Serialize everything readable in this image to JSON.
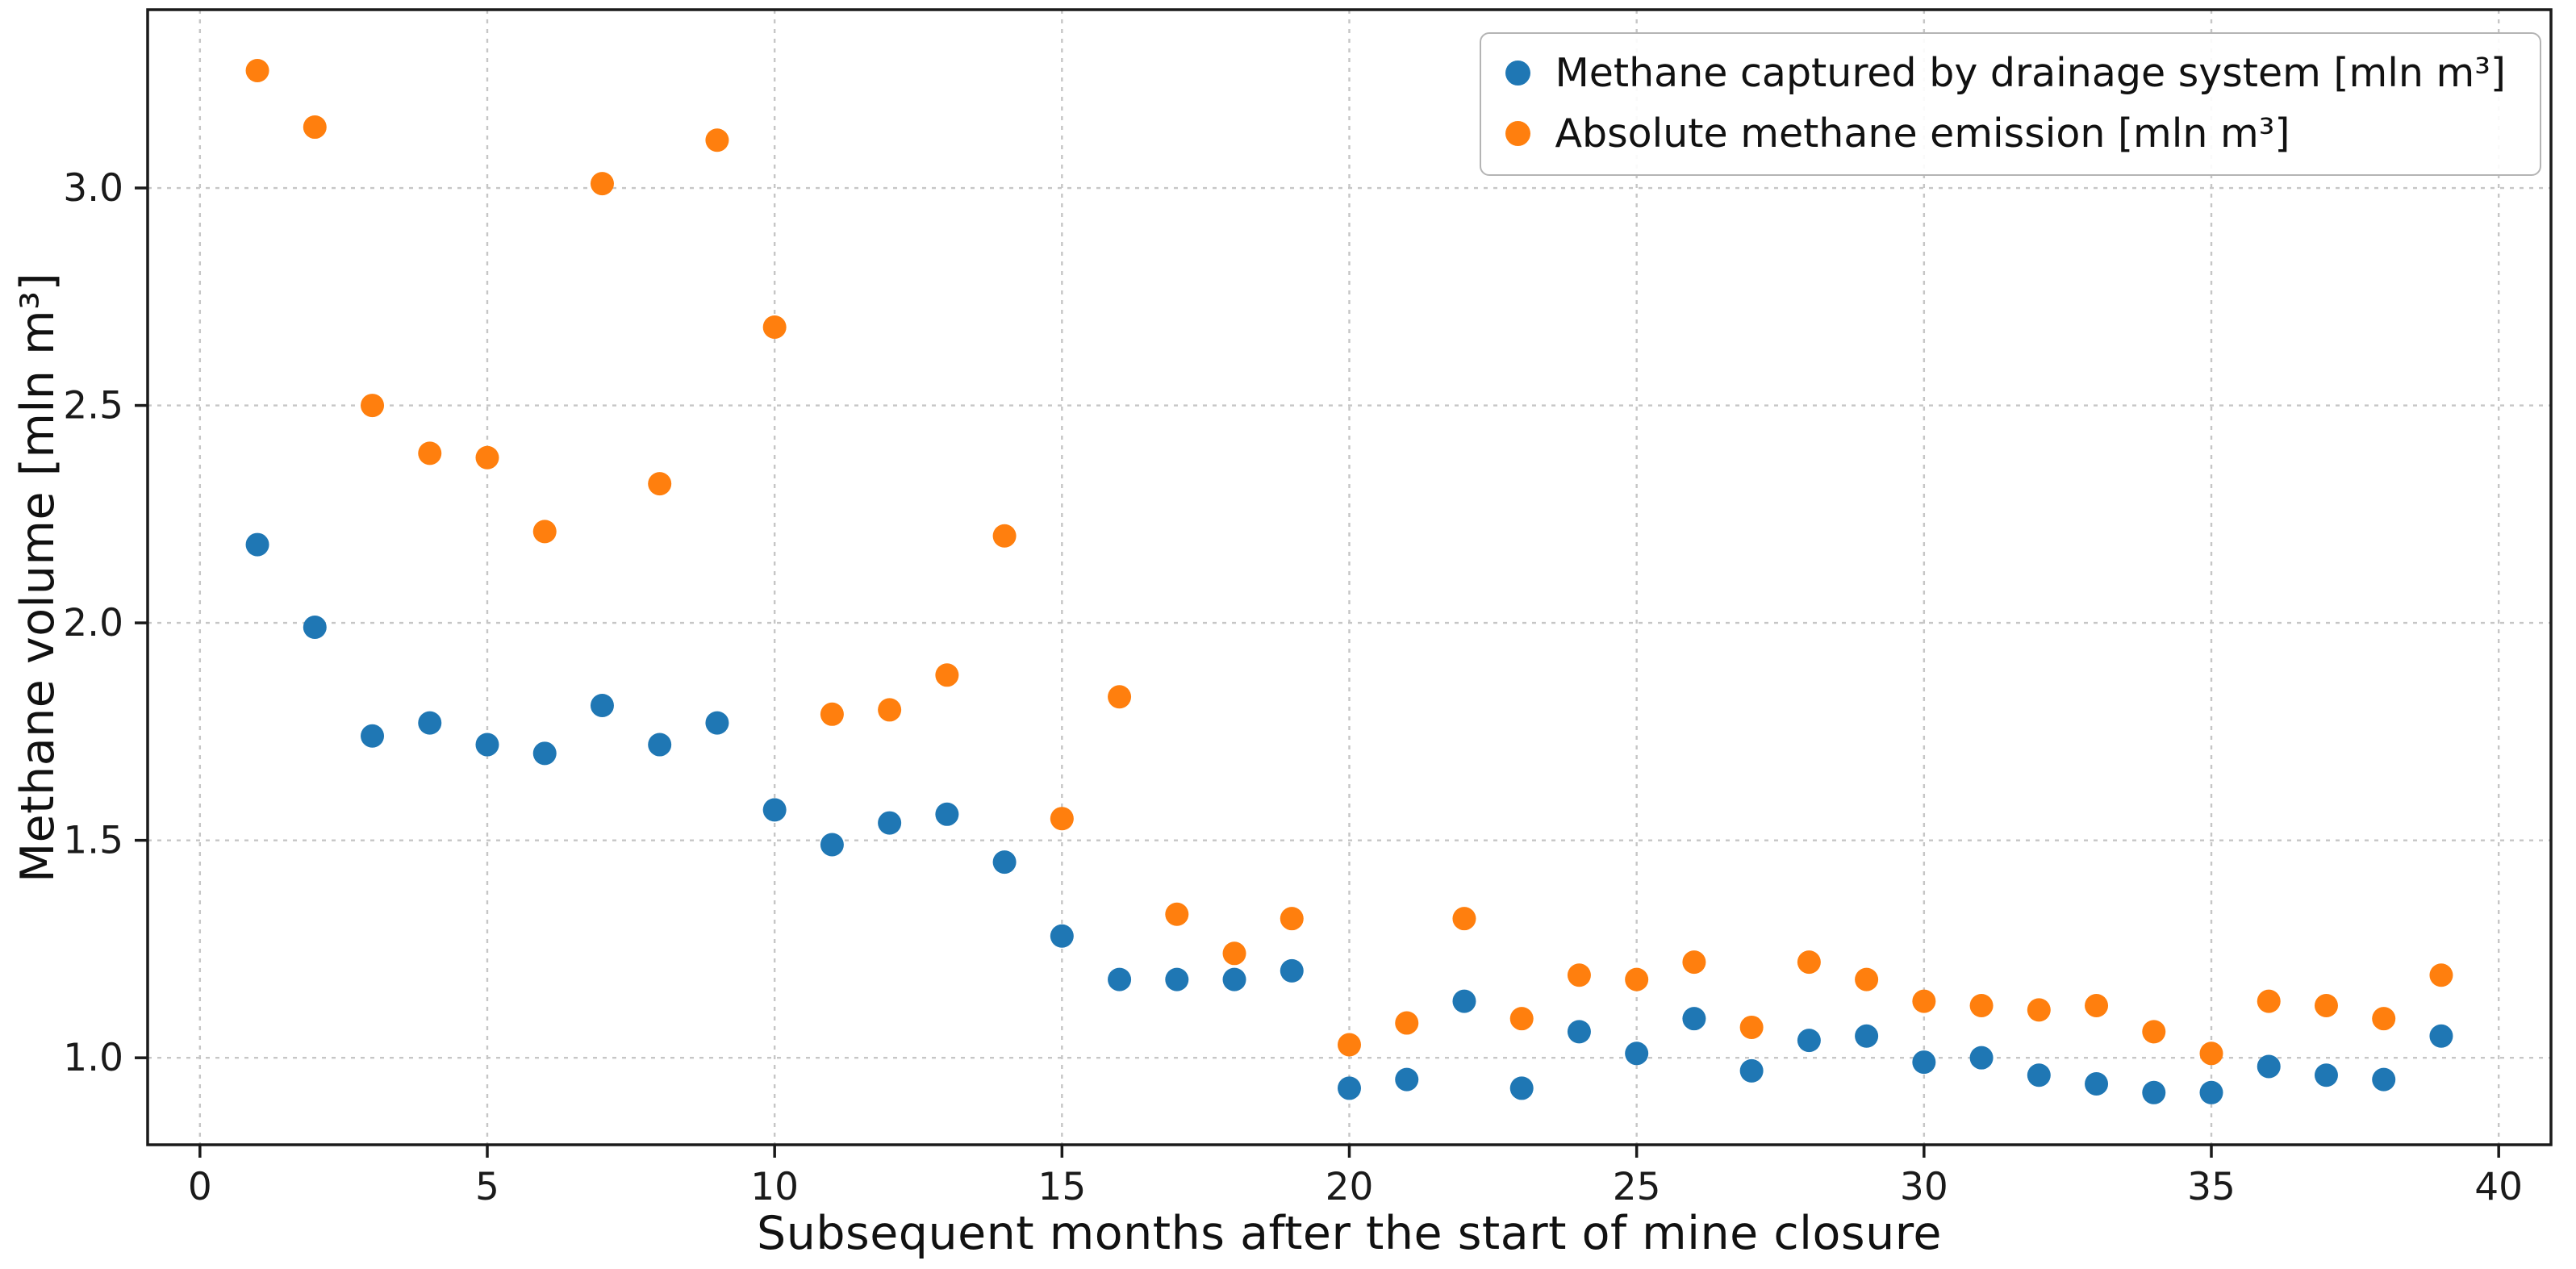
{
  "figure": {
    "background_color": "#ffffff",
    "grid_color": "#c6c6c6",
    "spine_color": "#1a1a1a",
    "tick_label_color": "#1a1a1a"
  },
  "chart_data": {
    "type": "scatter",
    "title": "",
    "xlabel": "Subsequent months after the start of mine closure",
    "ylabel": "Methane volume [mln m³]",
    "x": [
      1,
      2,
      3,
      4,
      5,
      6,
      7,
      8,
      9,
      10,
      11,
      12,
      13,
      14,
      15,
      16,
      17,
      18,
      19,
      20,
      21,
      22,
      23,
      24,
      25,
      26,
      27,
      28,
      29,
      30,
      31,
      32,
      33,
      34,
      35,
      36,
      37,
      38,
      39
    ],
    "series": [
      {
        "name": "Methane captured by drainage system [mln m³]",
        "color": "#1f77b4",
        "values": [
          2.18,
          1.99,
          1.74,
          1.77,
          1.72,
          1.7,
          1.81,
          1.72,
          1.77,
          1.57,
          1.49,
          1.54,
          1.56,
          1.45,
          1.28,
          1.18,
          1.18,
          1.18,
          1.2,
          0.93,
          0.95,
          1.13,
          0.93,
          1.06,
          1.01,
          1.09,
          0.97,
          1.04,
          1.05,
          0.99,
          1.0,
          0.96,
          0.94,
          0.92,
          0.92,
          0.98,
          0.96,
          0.95,
          1.05
        ]
      },
      {
        "name": "Absolute methane emission [mln m³]",
        "color": "#ff7f0e",
        "values": [
          3.27,
          3.14,
          2.5,
          2.39,
          2.38,
          2.21,
          3.01,
          2.32,
          3.11,
          2.68,
          1.79,
          1.8,
          1.88,
          2.2,
          1.55,
          1.83,
          1.33,
          1.24,
          1.32,
          1.03,
          1.08,
          1.32,
          1.09,
          1.19,
          1.18,
          1.22,
          1.07,
          1.22,
          1.18,
          1.13,
          1.12,
          1.11,
          1.12,
          1.06,
          1.01,
          1.13,
          1.12,
          1.09,
          1.19
        ]
      }
    ],
    "x_ticks": [
      0,
      5,
      10,
      15,
      20,
      25,
      30,
      35,
      40
    ],
    "y_ticks": [
      1.0,
      1.5,
      2.0,
      2.5,
      3.0
    ],
    "xlim": [
      -0.91,
      40.91
    ],
    "ylim": [
      0.8,
      3.41
    ],
    "grid": true,
    "legend_position": "upper right"
  }
}
